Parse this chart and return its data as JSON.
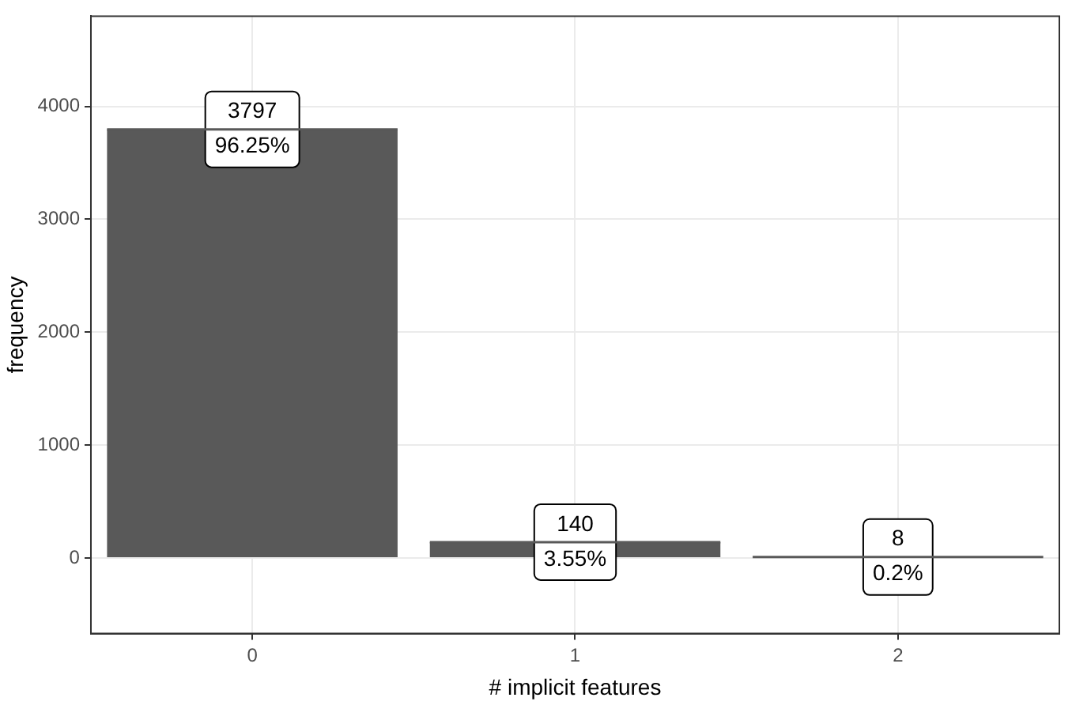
{
  "chart_data": {
    "type": "bar",
    "xlabel": "# implicit features",
    "ylabel": "frequency",
    "categories": [
      "0",
      "1",
      "2"
    ],
    "values": [
      3797,
      140,
      8
    ],
    "value_labels": [
      "3797\n96.25%",
      "140\n3.55%",
      "8\n0.2%"
    ],
    "color": "#595959",
    "ylim": [
      -670,
      4800
    ],
    "yticks": [
      0,
      1000,
      2000,
      3000,
      4000
    ],
    "grid": true
  }
}
